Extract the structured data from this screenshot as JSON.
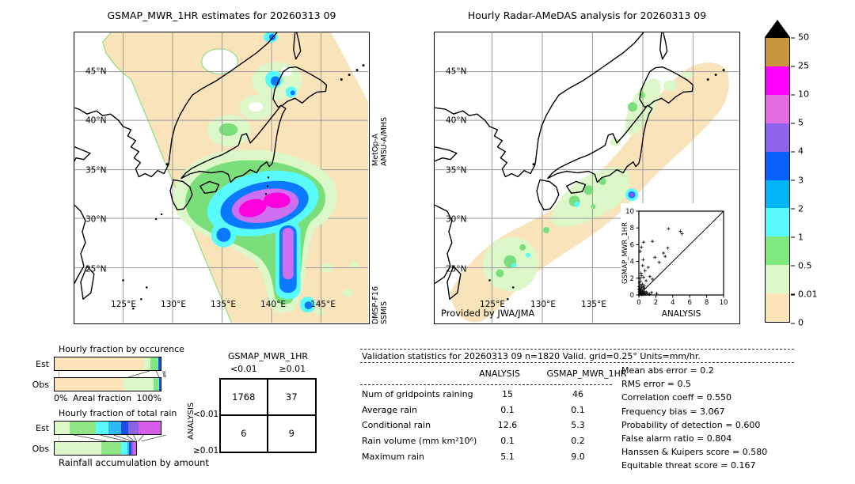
{
  "chart_data": [
    {
      "id": "gsmap_map",
      "type": "heatmap",
      "title": "GSMAP_MWR_1HR estimates for 20260313 09",
      "lat_ticks": [
        "45°N",
        "40°N",
        "35°N",
        "30°N",
        "25°N"
      ],
      "lon_ticks": [
        "125°E",
        "130°E",
        "135°E",
        "140°E",
        "145°E"
      ],
      "sensor_labels": {
        "top": [
          "MetOp-A",
          "AMSU-A/MHS"
        ],
        "bottom": [
          "DMSP-F16",
          "SSMIS"
        ]
      },
      "units": "mm/hr",
      "features": "Diagonal satellite swath coverage (tan = 0-0.01 mm/hr); comma-shaped rain system southeast of Japan near 30N,138E with 10-25 mm/hr magenta cores and a southward violet-blue tail along 140E; smaller cyan-blue cells near northern Honshu"
    },
    {
      "id": "radar_map",
      "type": "heatmap",
      "title": "Hourly Radar-AMeDAS analysis for 20260313 09",
      "lat_ticks": [
        "45°N",
        "40°N",
        "35°N",
        "30°N",
        "25°N"
      ],
      "lon_ticks": [
        "125°E",
        "130°E",
        "135°E"
      ],
      "credit": "Provided by JWA/JMA",
      "units": "mm/hr",
      "features": "Tan band of trace rain (0-0.01 mm/hr) along the Japanese archipelago with pale-green 0.01-0.5 mm/hr patches over Tokai, Kyushu and Tohoku, scattered 0.5-1 mm/hr green cells, and one small 3-5 mm/hr cyan-blue-purple cell south of central Honshu"
    },
    {
      "id": "colorbar",
      "type": "legend",
      "units": "mm/hr",
      "tick_labels": [
        "50",
        "25",
        "10",
        "5",
        "4",
        "3",
        "2",
        "1",
        "0.5",
        "0.01",
        "0"
      ],
      "segments": [
        {
          "range": "25-50",
          "color": "#c8963c"
        },
        {
          "range": "10-25",
          "color": "#ff00ff"
        },
        {
          "range": "5-10",
          "color": "#e26ce2"
        },
        {
          "range": "4-5",
          "color": "#8f64ec"
        },
        {
          "range": "3-4",
          "color": "#0a60fa"
        },
        {
          "range": "2-3",
          "color": "#00b4f5"
        },
        {
          "range": "1-2",
          "color": "#58fbfb"
        },
        {
          "range": "0.5-1",
          "color": "#7fe87f"
        },
        {
          "range": "0.01-0.5",
          "color": "#dcf8c8"
        },
        {
          "range": "0-0.01",
          "color": "#fbe4b8"
        }
      ],
      "overflow_marker_color": "#000000"
    },
    {
      "id": "occurrence_fractions",
      "type": "bar",
      "stacked": true,
      "title": "Hourly fraction by occurence",
      "xlabel": "Areal fraction",
      "x_min_label": "0%",
      "x_max_label": "100%",
      "rows": [
        {
          "label": "Est",
          "segments": [
            [
              "#fbe4b8",
              84.5
            ],
            [
              "#dcf8c8",
              6.0
            ],
            [
              "#7fe87f",
              6.3
            ],
            [
              "#58fbfb",
              1.2
            ],
            [
              "#1b50e6",
              2.0
            ]
          ]
        },
        {
          "label": "Obs",
          "segments": [
            [
              "#fbe4b8",
              65.0
            ],
            [
              "#dcf8c8",
              28.5
            ],
            [
              "#7fe87f",
              4.5
            ],
            [
              "#58fbfb",
              0.8
            ],
            [
              "#1b50e6",
              1.2
            ]
          ]
        }
      ]
    },
    {
      "id": "totalrain_fractions",
      "type": "bar",
      "stacked": true,
      "title": "Hourly fraction of total rain",
      "xlabel": "Rainfall accumulation by amount",
      "rows": [
        {
          "label": "Est",
          "segments": [
            [
              "#dcf8c8",
              14.0
            ],
            [
              "#8fe584",
              24.5
            ],
            [
              "#58fbfb",
              12.5
            ],
            [
              "#2eb8f8",
              12.0
            ],
            [
              "#1b50e6",
              6.5
            ],
            [
              "#8a64e8",
              9.5
            ],
            [
              "#d75ce8",
              21.0
            ]
          ]
        },
        {
          "label": "Obs",
          "segments": [
            [
              "#dcf8c8",
              44.5
            ],
            [
              "#8fe584",
              18.5
            ],
            [
              "#58fbfb",
              6.0
            ],
            [
              "#2eb8f8",
              1.5
            ],
            [
              "#1b50e6",
              2.0
            ],
            [
              "#8a64e8",
              1.5
            ],
            [
              "#d75ce8",
              3.0
            ]
          ]
        }
      ]
    },
    {
      "id": "contingency_table",
      "type": "table",
      "col_title": "GSMAP_MWR_1HR",
      "row_title": "ANALYSIS",
      "col_labels": [
        "<0.01",
        "≥0.01"
      ],
      "row_labels": [
        "<0.01",
        "≥0.01"
      ],
      "values": [
        [
          "1768",
          "37"
        ],
        [
          "6",
          "9"
        ]
      ]
    },
    {
      "id": "validation_stats",
      "type": "table",
      "header": "Validation statistics for 20260313 09  n=1820 Valid. grid=0.25° Units=mm/hr.",
      "columns": [
        "ANALYSIS",
        "GSMAP_MWR_1HR"
      ],
      "rows": [
        [
          "Num of gridpoints raining",
          "15",
          "46"
        ],
        [
          "Average rain",
          "0.1",
          "0.1"
        ],
        [
          "Conditional rain",
          "12.6",
          "5.3"
        ],
        [
          "Rain volume (mm km²10⁶)",
          "0.1",
          "0.2"
        ],
        [
          "Maximum rain",
          "5.1",
          "9.0"
        ]
      ],
      "scores": [
        [
          "Mean abs error",
          "0.2"
        ],
        [
          "RMS error",
          "0.5"
        ],
        [
          "Correlation coeff",
          "0.550"
        ],
        [
          "Frequency bias",
          "3.067"
        ],
        [
          "Probability of detection",
          "0.600"
        ],
        [
          "False alarm ratio",
          "0.804"
        ],
        [
          "Hanssen & Kuipers score",
          "0.580"
        ],
        [
          "Equitable threat score",
          "0.167"
        ]
      ]
    },
    {
      "id": "inset_scatter",
      "type": "scatter",
      "xlabel": "ANALYSIS",
      "ylabel": "GSMAP_MWR_1HR",
      "xlim": [
        0,
        10
      ],
      "ylim": [
        0,
        10
      ],
      "tick_labels": [
        "0",
        "2",
        "4",
        "6",
        "8",
        "10"
      ],
      "diagonal": true,
      "points": [
        [
          0.05,
          0.05
        ],
        [
          0.1,
          0.15
        ],
        [
          0.18,
          0.08
        ],
        [
          0.25,
          0.2
        ],
        [
          0.06,
          0.45
        ],
        [
          0.12,
          0.65
        ],
        [
          0.22,
          0.55
        ],
        [
          0.3,
          0.18
        ],
        [
          0.38,
          0.42
        ],
        [
          0.1,
          0.85
        ],
        [
          0.28,
          0.75
        ],
        [
          0.42,
          0.12
        ],
        [
          0.5,
          0.3
        ],
        [
          0.46,
          0.6
        ],
        [
          0.32,
          1.0
        ],
        [
          0.15,
          1.2
        ],
        [
          0.52,
          0.9
        ],
        [
          0.62,
          0.15
        ],
        [
          0.72,
          0.4
        ],
        [
          0.66,
          0.8
        ],
        [
          0.82,
          0.1
        ],
        [
          0.92,
          0.35
        ],
        [
          1.05,
          0.15
        ],
        [
          1.25,
          0.08
        ],
        [
          0.06,
          1.5
        ],
        [
          0.2,
          1.65
        ],
        [
          0.4,
          1.3
        ],
        [
          0.62,
          1.1
        ],
        [
          1.5,
          0.3
        ],
        [
          2.1,
          0.18
        ],
        [
          0.15,
          2.0
        ],
        [
          0.3,
          2.3
        ],
        [
          0.55,
          2.1
        ],
        [
          0.25,
          2.6
        ],
        [
          0.72,
          2.9
        ],
        [
          1.1,
          3.3
        ],
        [
          0.45,
          3.5
        ],
        [
          0.5,
          4.2
        ],
        [
          1.9,
          4.5
        ],
        [
          2.4,
          3.9
        ],
        [
          3.1,
          4.6
        ],
        [
          2.9,
          5.0
        ],
        [
          3.4,
          5.6
        ],
        [
          0.15,
          5.2
        ],
        [
          0.3,
          5.7
        ],
        [
          0.55,
          6.3
        ],
        [
          1.6,
          6.4
        ],
        [
          1.3,
          2.2
        ],
        [
          1.6,
          1.9
        ],
        [
          0.85,
          1.7
        ],
        [
          3.5,
          7.9
        ],
        [
          4.9,
          7.6
        ],
        [
          5.1,
          7.3
        ],
        [
          0.08,
          0.3
        ],
        [
          0.35,
          0.05
        ],
        [
          0.55,
          0.05
        ],
        [
          0.02,
          0.7
        ],
        [
          0.02,
          1.0
        ],
        [
          0.18,
          0.35
        ],
        [
          0.08,
          0.6
        ]
      ]
    }
  ]
}
